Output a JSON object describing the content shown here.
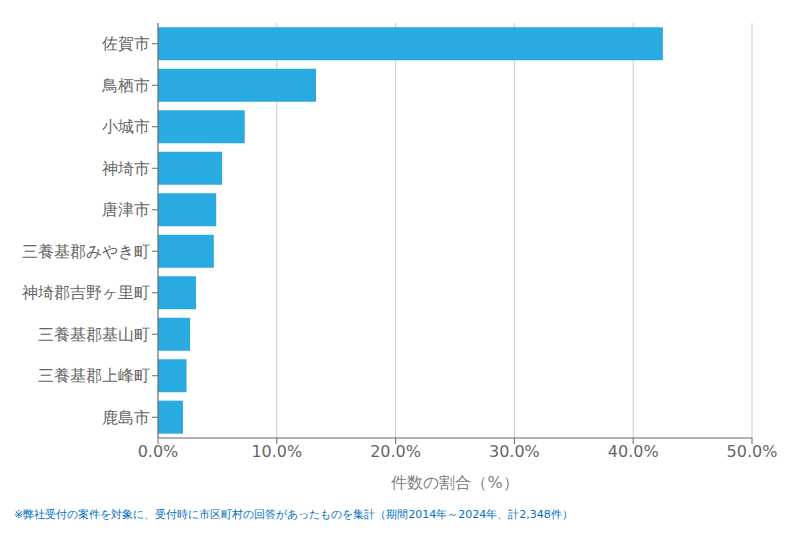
{
  "chart_data": {
    "type": "bar",
    "orientation": "horizontal",
    "categories": [
      "鹿島市",
      "三養基郡上峰町",
      "三養基郡基山町",
      "神埼郡吉野ヶ里町",
      "三養基郡みやき町",
      "唐津市",
      "神埼市",
      "小城市",
      "鳥栖市",
      "佐賀市"
    ],
    "values": [
      2.1,
      2.4,
      2.7,
      3.2,
      4.7,
      4.9,
      5.4,
      7.3,
      13.3,
      42.5
    ],
    "color": "#29abe2",
    "xlabel": "件数の割合（%）",
    "xlim": [
      0,
      50
    ],
    "xticks": [
      {
        "value": 0,
        "label": "0.0%"
      },
      {
        "value": 10,
        "label": "10.0%"
      },
      {
        "value": 20,
        "label": "20.0%"
      },
      {
        "value": 30,
        "label": "30.0%"
      },
      {
        "value": 40,
        "label": "40.0%"
      },
      {
        "value": 50,
        "label": "50.0%"
      }
    ],
    "grid": true,
    "annotations": [
      {
        "text": "※弊社受付の案件を対象に、受付時に市区町村の回答があったものを集計（期間2014年～2024年、計2,348件）",
        "color": "#0070c0"
      }
    ]
  }
}
